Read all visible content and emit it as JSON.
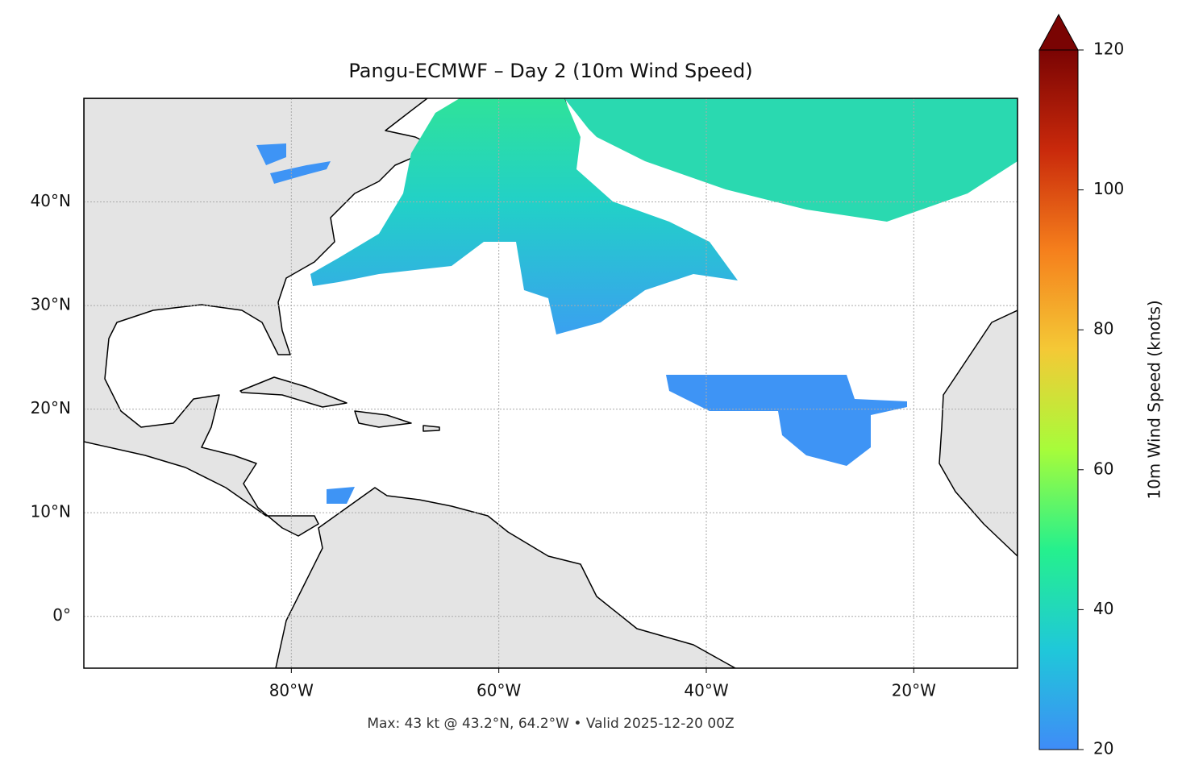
{
  "chart_data": {
    "type": "map",
    "title": "Pangu-ECMWF – Day 2 (10m Wind Speed)",
    "footer": "Max: 43 kt @ 43.2°N, 64.2°W • Valid 2025-12-20 00Z",
    "xlim": [
      -100,
      -10
    ],
    "ylim": [
      -5,
      50
    ],
    "xticks": [
      {
        "value": -80,
        "label": "80°W"
      },
      {
        "value": -60,
        "label": "60°W"
      },
      {
        "value": -40,
        "label": "40°W"
      },
      {
        "value": -20,
        "label": "20°W"
      }
    ],
    "yticks": [
      {
        "value": 0,
        "label": "0°"
      },
      {
        "value": 10,
        "label": "10°N"
      },
      {
        "value": 20,
        "label": "20°N"
      },
      {
        "value": 30,
        "label": "30°N"
      },
      {
        "value": 40,
        "label": "40°N"
      }
    ],
    "grid": true,
    "colorbar": {
      "label": "10m Wind Speed (knots)",
      "lim": [
        20,
        120
      ],
      "ticks": [
        20,
        40,
        60,
        80,
        100,
        120
      ],
      "colors": [
        "#3f8cf7",
        "#1fc8d9",
        "#25f08d",
        "#a7fc3a",
        "#f4c936",
        "#f57f1c",
        "#c9290b",
        "#7a0403"
      ]
    }
  }
}
